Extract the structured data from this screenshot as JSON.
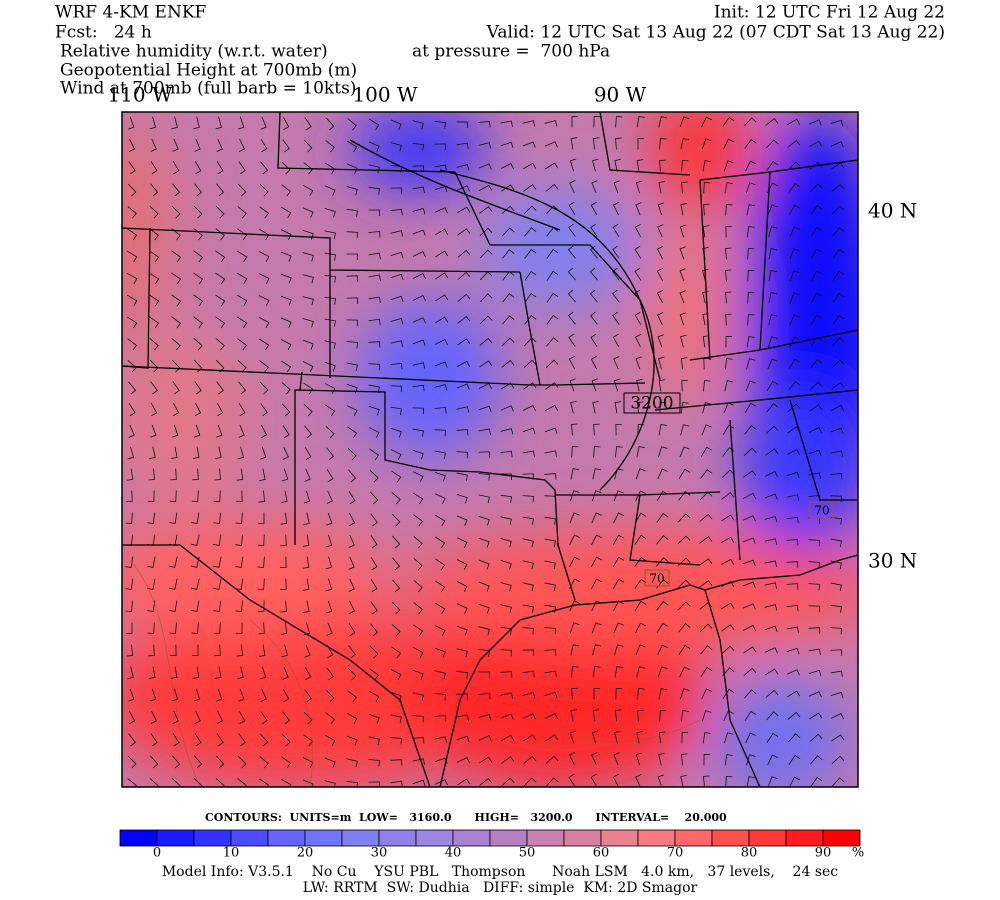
{
  "header": {
    "model": "WRF 4-KM ENKF",
    "forecast": "Fcst:   24 h",
    "init": "Init: 12 UTC Fri 12 Aug 22",
    "valid": "Valid: 12 UTC Sat 13 Aug 22 (07 CDT Sat 13 Aug 22)",
    "field_1": "Relative humidity (w.r.t. water)",
    "pressure": "at pressure =  700 hPa",
    "field_2": "Geopotential Height at 700mb (m)",
    "field_3": "Wind at 700mb (full barb = 10kts)"
  },
  "map": {
    "longitude_labels": [
      "110 W",
      "100 W",
      "90 W"
    ],
    "latitude_labels": [
      "40 N",
      "30 N"
    ],
    "contour_labels": [
      "3200",
      "70",
      "70"
    ]
  },
  "contour_info": "CONTOURS:  UNITS=m  LOW=   3160.0      HIGH=   3200.0      INTERVAL=    20.000",
  "colorbar": {
    "colors": [
      "#0000ff",
      "#1a1aff",
      "#3333ff",
      "#4d4dff",
      "#6666ff",
      "#7373f7",
      "#8080f0",
      "#8f80e8",
      "#9c86e0",
      "#a882d0",
      "#b480c0",
      "#c880b0",
      "#d880a0",
      "#e88090",
      "#f87a80",
      "#ff6868",
      "#ff5050",
      "#ff3838",
      "#ff1c1c",
      "#ff0000"
    ],
    "tick_labels": [
      "0",
      "10",
      "20",
      "30",
      "40",
      "50",
      "60",
      "70",
      "80",
      "90"
    ],
    "unit": "%"
  },
  "footer": {
    "model_info": "Model Info: V3.5.1    No Cu    YSU PBL   Thompson      Noah LSM   4.0 km,   37 levels,    24 sec",
    "physics": "LW: RRTM  SW: Dudhia   DIFF: simple  KM: 2D Smagor"
  }
}
